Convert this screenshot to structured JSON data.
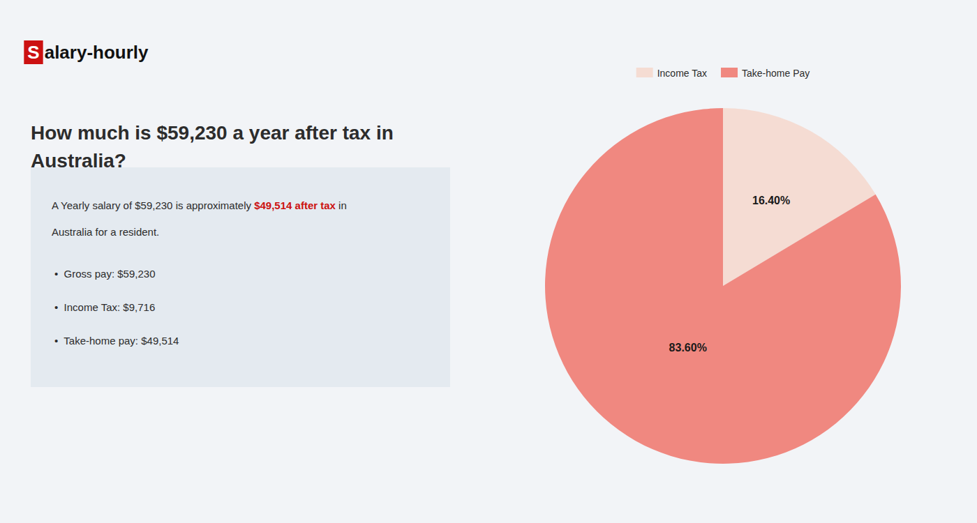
{
  "chart_data": {
    "type": "pie",
    "title": "How much is $59,230 a year after tax in\nAustralia?",
    "categories": [
      "Income Tax",
      "Take-home Pay"
    ],
    "values": [
      16.4,
      83.6
    ],
    "value_labels": [
      "16.40%",
      "83.60%"
    ],
    "colors": [
      "#f5dcd3",
      "#f08880"
    ],
    "data_labels": true,
    "legend": "top",
    "annotations": [
      "S",
      "alary-hourly",
      "A Yearly salary of $59,230 is approximately ",
      "$49,514 after tax",
      " in",
      "Australia for a resident.",
      "•  Gross pay: $59,230",
      "•  Income Tax: $9,716",
      "•  Take-home pay: $49,514"
    ]
  }
}
